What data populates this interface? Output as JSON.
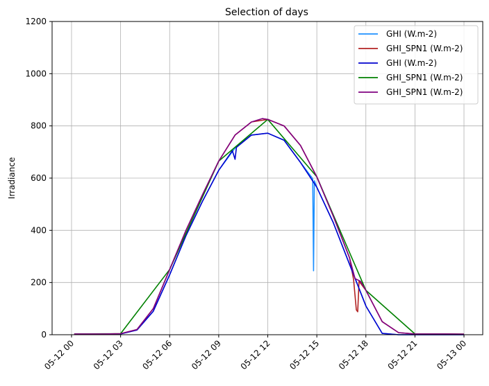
{
  "chart_data": {
    "type": "line",
    "title": "Selection of days",
    "xlabel": "",
    "ylabel": "Irradiance",
    "xlim": [
      "2024-05-12 00:00",
      "2024-05-13 00:00"
    ],
    "ylim": [
      0,
      1200
    ],
    "yticks": [
      0,
      200,
      400,
      600,
      800,
      1000,
      1200
    ],
    "xticks": [
      "05-12 00",
      "05-12 03",
      "05-12 06",
      "05-12 09",
      "05-12 12",
      "05-12 15",
      "05-12 18",
      "05-12 21",
      "05-13 00"
    ],
    "grid": true,
    "legend_position": "top-right",
    "series": [
      {
        "name": "GHI (W.m-2)",
        "color": "#1e90ff",
        "x": [
          "05-12 00:10",
          "05-12 02:00",
          "05-12 03:00",
          "05-12 04:00",
          "05-12 05:00",
          "05-12 06:00",
          "05-12 07:00",
          "05-12 08:00",
          "05-12 09:00",
          "05-12 10:00",
          "05-12 11:00",
          "05-12 12:00",
          "05-12 13:00",
          "05-12 14:00",
          "05-12 14:45",
          "05-12 14:48",
          "05-12 14:51",
          "05-12 15:00",
          "05-12 16:00",
          "05-12 17:00",
          "05-12 18:00",
          "05-12 19:00",
          "05-12 20:00",
          "05-12 21:00",
          "05-12 22:00",
          "05-12 23:00",
          "05-13 00:00"
        ],
        "y": [
          2,
          2,
          3,
          18,
          90,
          230,
          380,
          510,
          630,
          715,
          765,
          772,
          745,
          660,
          598,
          245,
          590,
          565,
          430,
          270,
          110,
          5,
          0,
          0,
          0,
          0,
          0
        ]
      },
      {
        "name": "GHI_SPN1 (W.m-2)",
        "color": "#b22222",
        "x": [
          "05-12 00:10",
          "05-12 02:00",
          "05-12 03:00",
          "05-12 04:00",
          "05-12 05:00",
          "05-12 06:00",
          "05-12 07:00",
          "05-12 08:00",
          "05-12 09:00",
          "05-12 10:00",
          "05-12 11:00",
          "05-12 12:00",
          "05-12 13:00",
          "05-12 14:00",
          "05-12 15:00",
          "05-12 16:00",
          "05-12 17:00",
          "05-12 17:15",
          "05-12 17:25",
          "05-12 17:30",
          "05-12 17:35",
          "05-12 18:00",
          "05-12 19:00",
          "05-12 20:00",
          "05-12 21:00",
          "05-12 22:00",
          "05-12 23:00",
          "05-13 00:00"
        ],
        "y": [
          3,
          3,
          4,
          20,
          100,
          250,
          400,
          535,
          665,
          765,
          815,
          825,
          800,
          725,
          605,
          455,
          295,
          210,
          95,
          88,
          205,
          170,
          50,
          8,
          3,
          3,
          3,
          2
        ]
      },
      {
        "name": "GHI (W.m-2)",
        "color": "#0000cd",
        "x": [
          "05-12 00:10",
          "05-12 02:00",
          "05-12 03:00",
          "05-12 04:00",
          "05-12 05:00",
          "05-12 06:00",
          "05-12 07:00",
          "05-12 08:00",
          "05-12 09:00",
          "05-12 09:50",
          "05-12 10:00",
          "05-12 10:05",
          "05-12 11:00",
          "05-12 12:00",
          "05-12 13:00",
          "05-12 14:00",
          "05-12 15:00",
          "05-12 16:00",
          "05-12 17:00",
          "05-12 18:00",
          "05-12 19:00",
          "05-12 20:00",
          "05-12 21:00",
          "05-12 22:00",
          "05-12 23:00",
          "05-13 00:00"
        ],
        "y": [
          2,
          2,
          3,
          18,
          90,
          230,
          380,
          510,
          630,
          705,
          672,
          718,
          765,
          772,
          745,
          660,
          565,
          430,
          270,
          110,
          5,
          0,
          0,
          0,
          0,
          0
        ]
      },
      {
        "name": "GHI_SPN1 (W.m-2)",
        "color": "#008000",
        "x": [
          "05-12 00:10",
          "05-12 03:00",
          "05-12 06:00",
          "05-12 09:00",
          "05-12 12:00",
          "05-12 15:00",
          "05-12 18:00",
          "05-12 21:00",
          "05-13 00:00"
        ],
        "y": [
          3,
          4,
          250,
          665,
          825,
          605,
          170,
          3,
          2
        ]
      },
      {
        "name": "GHI_SPN1 (W.m-2)",
        "color": "#800080",
        "x": [
          "05-12 00:10",
          "05-12 02:00",
          "05-12 03:00",
          "05-12 04:00",
          "05-12 05:00",
          "05-12 06:00",
          "05-12 07:00",
          "05-12 08:00",
          "05-12 09:00",
          "05-12 10:00",
          "05-12 11:00",
          "05-12 11:40",
          "05-12 12:00",
          "05-12 13:00",
          "05-12 14:00",
          "05-12 15:00",
          "05-12 16:00",
          "05-12 17:00",
          "05-12 17:20",
          "05-12 17:40",
          "05-12 18:00",
          "05-12 19:00",
          "05-12 20:00",
          "05-12 21:00",
          "05-12 22:00",
          "05-12 23:00",
          "05-13 00:00"
        ],
        "y": [
          3,
          3,
          4,
          20,
          100,
          250,
          400,
          535,
          665,
          765,
          815,
          828,
          825,
          800,
          725,
          605,
          455,
          295,
          215,
          205,
          170,
          50,
          8,
          3,
          3,
          3,
          2
        ]
      }
    ]
  }
}
